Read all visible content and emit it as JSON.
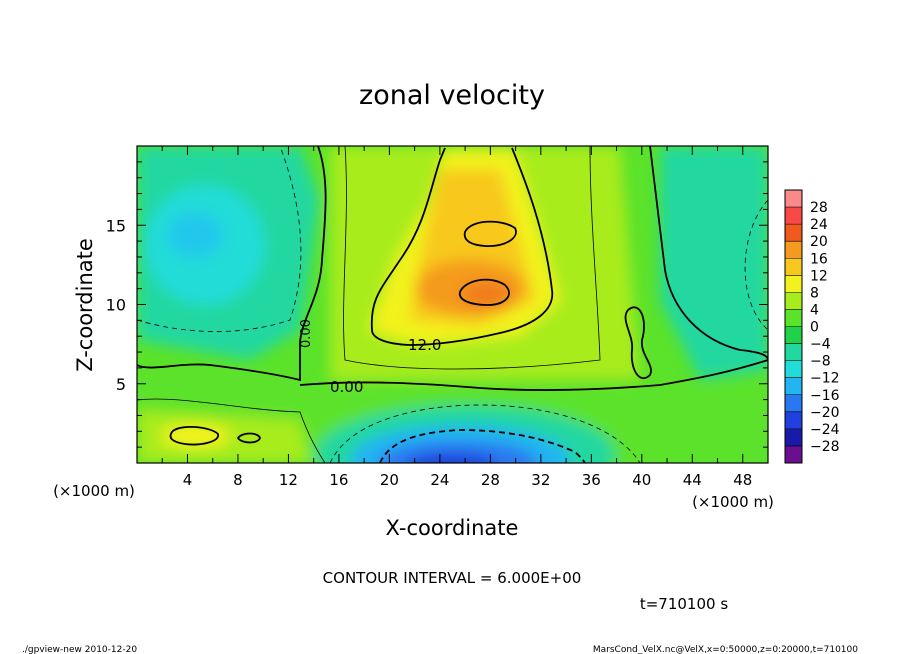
{
  "chart_data": {
    "type": "heatmap",
    "title": "zonal velocity",
    "xlabel": "X-coordinate",
    "ylabel": "Z-coordinate",
    "x_unit": "(×1000 m)",
    "y_unit": "(×1000 m)",
    "xlim": [
      0,
      50
    ],
    "ylim": [
      0,
      20
    ],
    "x_ticks": [
      4,
      8,
      12,
      16,
      20,
      24,
      28,
      32,
      36,
      40,
      44,
      48
    ],
    "y_ticks": [
      5,
      10,
      15
    ],
    "colorbar": {
      "levels": [
        -28,
        -24,
        -20,
        -16,
        -12,
        -8,
        -4,
        0,
        4,
        8,
        12,
        16,
        20,
        24,
        28
      ],
      "labels": [
        "28",
        "24",
        "20",
        "16",
        "12",
        "8",
        "4",
        "0",
        "−4",
        "−8",
        "−12",
        "−16",
        "−20",
        "−24",
        "−28"
      ],
      "colors": [
        "#6a0f8e",
        "#1a1aa8",
        "#2040e0",
        "#2a78f0",
        "#23b4f2",
        "#21dcd8",
        "#20d8a0",
        "#1fd24a",
        "#5be22a",
        "#a8ec1e",
        "#f2f21e",
        "#f8c81e",
        "#f49a1e",
        "#f05a1e",
        "#f84848",
        "#f88a8a"
      ]
    },
    "features": [
      {
        "name": "upper jet core",
        "x": 28,
        "z": 11,
        "value": 16
      },
      {
        "name": "upper jet secondary",
        "x": 26,
        "z": 14.6,
        "value": 12
      },
      {
        "name": "surface westward jet",
        "x": 24,
        "z": 0.8,
        "value": -24
      },
      {
        "name": "cyan region",
        "x": 5,
        "z": 14,
        "value": -10
      },
      {
        "name": "near-surface positive",
        "x": 5,
        "z": 1.8,
        "value": 12
      }
    ],
    "contour_labels": [
      "12.0",
      "0.00",
      "0.00"
    ],
    "contour_interval": "CONTOUR INTERVAL = 6.000E+00",
    "time": "t=710100 s"
  },
  "footer": {
    "left": "./gpview-new  2010-12-20",
    "right": "MarsCond_VelX.nc@VelX,x=0:50000,z=0:20000,t=710100"
  }
}
